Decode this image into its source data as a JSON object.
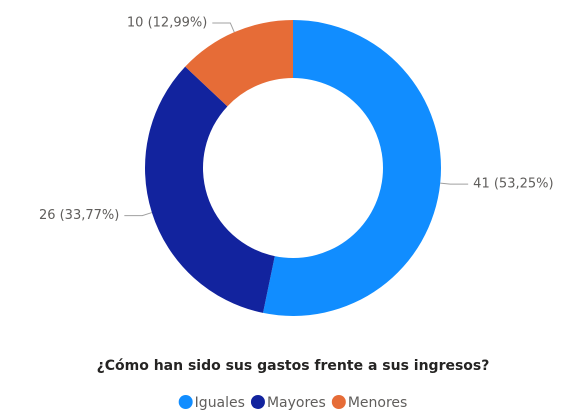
{
  "chart_data": {
    "type": "donut",
    "title": "¿Cómo han sido sus gastos frente a sus ingresos?",
    "categories": [
      "Iguales",
      "Mayores",
      "Menores"
    ],
    "values": [
      41,
      26,
      10
    ],
    "value_labels": [
      "41 (53,25%)",
      "26 (33,77%)",
      "10 (12,99%)"
    ],
    "colors": [
      "#118DFF",
      "#12239E",
      "#E66C37"
    ],
    "legend": "bottom"
  }
}
